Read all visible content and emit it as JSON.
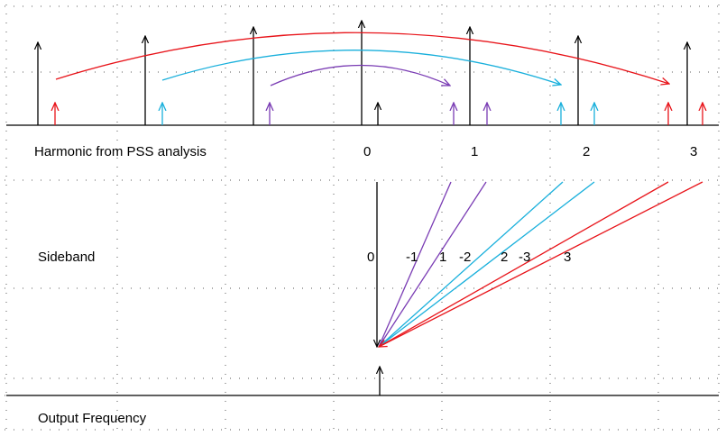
{
  "labels": {
    "harmonic": "Harmonic  from PSS analysis",
    "sideband": "Sideband",
    "output": "Output Frequency"
  },
  "harmonic_numbers": [
    "0",
    "1",
    "2",
    "3"
  ],
  "sideband_numbers": [
    "0",
    "-1",
    "1",
    "-2",
    "2",
    "-3",
    "3"
  ],
  "colors": {
    "black": "#000000",
    "red": "#e8141a",
    "cyan": "#1ab0dc",
    "purple": "#7a3cb4",
    "grid": "#555555"
  }
}
